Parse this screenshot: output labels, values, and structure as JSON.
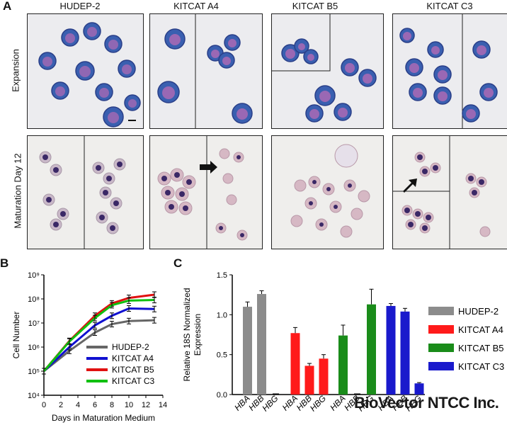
{
  "panel_a": {
    "letter": "A",
    "columns": [
      "HUDEP-2",
      "KITCAT A4",
      "KITCAT B5",
      "KITCAT C3"
    ],
    "rows": [
      "Expansion",
      "Maturation  Day 12"
    ]
  },
  "panel_b": {
    "letter": "B"
  },
  "panel_c": {
    "letter": "C"
  },
  "watermark": "BioVector NTCC Inc.",
  "chart_data": [
    {
      "type": "line",
      "xlabel": "Days in Maturation Medium",
      "ylabel": "Cell Number",
      "x_ticks": [
        0,
        2,
        4,
        6,
        8,
        10,
        12,
        14
      ],
      "y_tick_labels": [
        "10⁴",
        "10⁵",
        "10⁶",
        "10⁷",
        "10⁸",
        "10⁹"
      ],
      "y_scale": "log",
      "xlim": [
        0,
        14
      ],
      "ylim": [
        10000,
        1000000000
      ],
      "legend_position": "bottom-right",
      "series": [
        {
          "name": "HUDEP-2",
          "color": "#666666",
          "x": [
            0,
            3,
            6,
            8,
            10,
            13
          ],
          "y": [
            100000,
            700000,
            4000000,
            9000000,
            12000000,
            13000000
          ]
        },
        {
          "name": "KITCAT A4",
          "color": "#1010d0",
          "x": [
            0,
            3,
            6,
            8,
            10,
            13
          ],
          "y": [
            100000,
            1000000,
            8000000,
            20000000,
            40000000,
            38000000
          ]
        },
        {
          "name": "KITCAT B5",
          "color": "#e01010",
          "x": [
            0,
            3,
            6,
            8,
            10,
            13
          ],
          "y": [
            100000,
            1800000,
            20000000,
            65000000,
            110000000,
            150000000
          ]
        },
        {
          "name": "KITCAT C3",
          "color": "#10c010",
          "x": [
            0,
            3,
            6,
            8,
            10,
            13
          ],
          "y": [
            100000,
            1700000,
            16000000,
            55000000,
            85000000,
            90000000
          ]
        }
      ]
    },
    {
      "type": "bar",
      "ylabel": "Relative 18S Normalized Expression",
      "y_ticks": [
        "0.0",
        "0.5",
        "1.0",
        "1.5"
      ],
      "ylim": [
        0,
        1.5
      ],
      "categories": [
        "HBA",
        "HBB",
        "HBG"
      ],
      "legend_position": "right",
      "series": [
        {
          "name": "HUDEP-2",
          "color": "#8c8c8c",
          "values": [
            1.1,
            1.26,
            0.0
          ],
          "errors": [
            0.06,
            0.04,
            0.0
          ]
        },
        {
          "name": "KITCAT A4",
          "color": "#ff1a1a",
          "values": [
            0.77,
            0.36,
            0.45
          ],
          "errors": [
            0.07,
            0.03,
            0.05
          ]
        },
        {
          "name": "KITCAT B5",
          "color": "#1a8c1a",
          "values": [
            0.74,
            0.0,
            1.13
          ],
          "errors": [
            0.13,
            0.0,
            0.19
          ]
        },
        {
          "name": "KITCAT C3",
          "color": "#1a1acc",
          "values": [
            1.11,
            1.04,
            0.14
          ],
          "errors": [
            0.03,
            0.04,
            0.01
          ]
        }
      ]
    }
  ]
}
